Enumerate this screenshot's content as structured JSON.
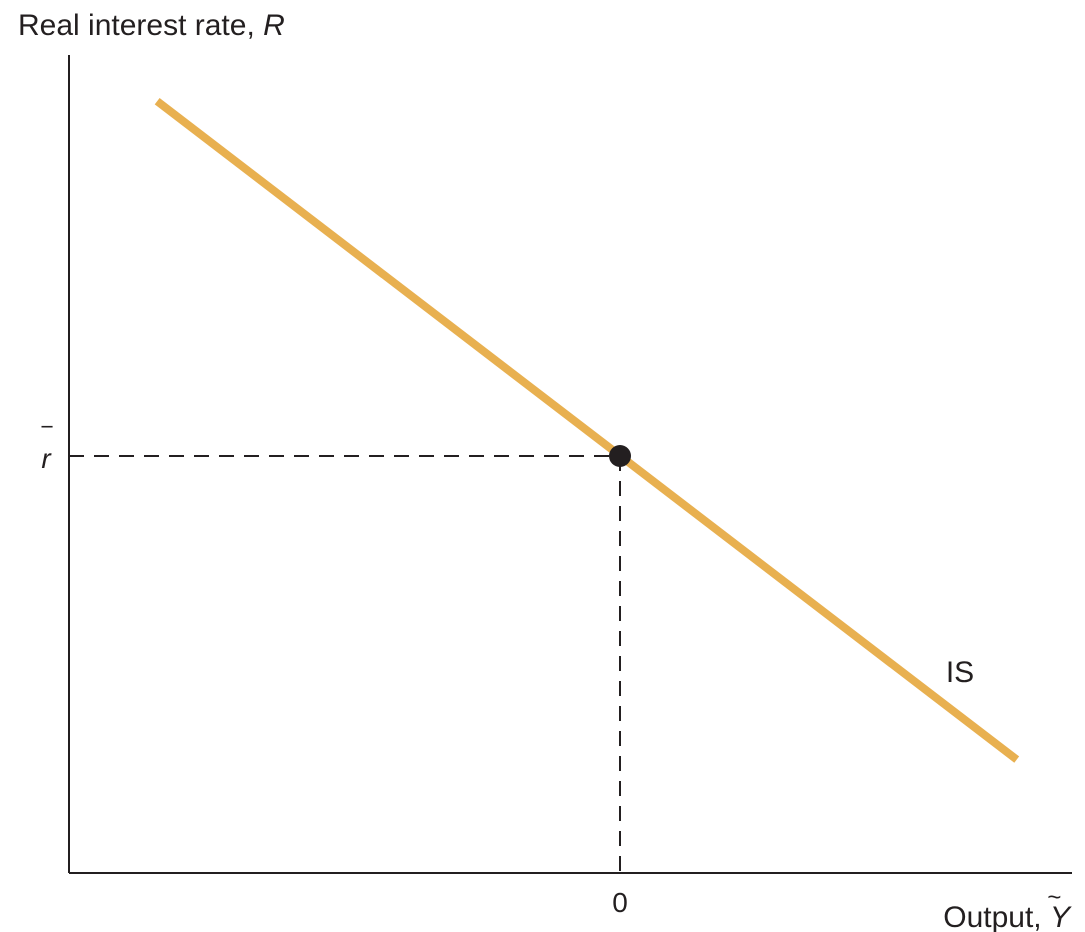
{
  "chart_data": {
    "type": "line",
    "ylabel": {
      "text": "Real interest rate, ",
      "symbol": "R"
    },
    "xlabel": {
      "text": "Output, ",
      "symbol": "Y",
      "symbol_accent": "~"
    },
    "x_ticks": [
      {
        "value": 0,
        "label": "0"
      }
    ],
    "y_ticks": [
      {
        "value": 0,
        "label": "r",
        "label_accent": "‾"
      }
    ],
    "series": [
      {
        "name": "IS",
        "color": "#e8b050",
        "points": [
          {
            "x": -0.84,
            "y": 0.97
          },
          {
            "x": 0.72,
            "y": -0.83
          }
        ]
      }
    ],
    "marker": {
      "x": 0,
      "y": 0,
      "color": "#231f20"
    },
    "reference_lines": {
      "style": "dashed",
      "to_point": true
    },
    "xlim": [
      -1,
      0.82
    ],
    "ylim": [
      -1.14,
      1.24
    ],
    "grid": false,
    "legend": "none"
  },
  "colors": {
    "axis": "#231f20",
    "curve": "#e8b050",
    "dashes": "#231f20"
  }
}
